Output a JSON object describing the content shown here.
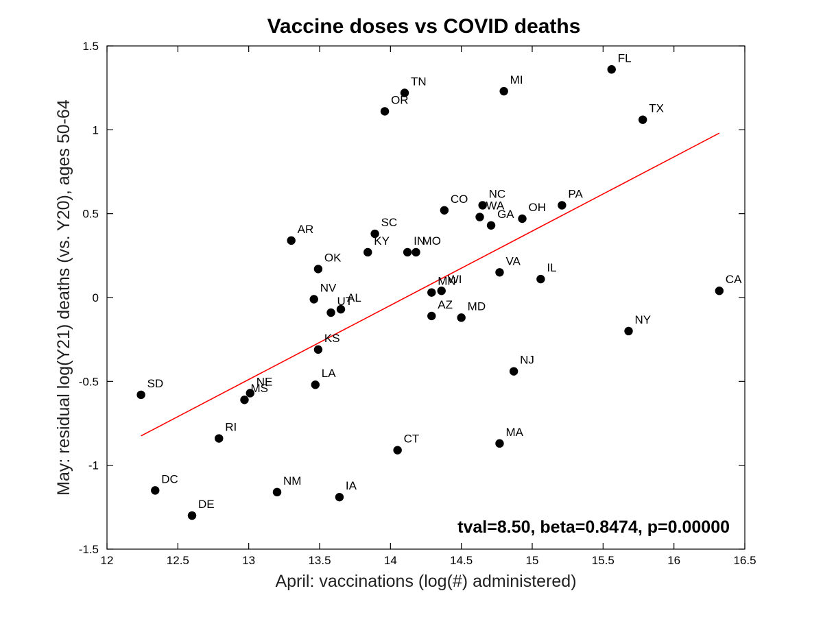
{
  "chart_data": {
    "type": "scatter",
    "title": "Vaccine doses vs COVID deaths",
    "xlabel": "April: vaccinations (log(#) administered)",
    "ylabel": "May: residual log(Y21) deaths (vs. Y20), ages 50-64",
    "xlim": [
      12,
      16.5
    ],
    "ylim": [
      -1.5,
      1.5
    ],
    "xticks": [
      12,
      12.5,
      13,
      13.5,
      14,
      14.5,
      15,
      15.5,
      16,
      16.5
    ],
    "yticks": [
      -1.5,
      -1,
      -0.5,
      0,
      0.5,
      1,
      1.5
    ],
    "xtick_labels": [
      "12",
      "12.5",
      "13",
      "13.5",
      "14",
      "14.5",
      "15",
      "15.5",
      "16",
      "16.5"
    ],
    "ytick_labels": [
      "-1.5",
      "-1",
      "-0.5",
      "0",
      "0.5",
      "1",
      "1.5"
    ],
    "annotation": "tval=8.50, beta=0.8474, p=0.00000",
    "fit_line": {
      "x": [
        12.24,
        16.32
      ],
      "y": [
        -0.825,
        0.98
      ],
      "color": "#ff0000"
    },
    "point_color": "#000000",
    "points": [
      {
        "label": "FL",
        "x": 15.56,
        "y": 1.36
      },
      {
        "label": "MI",
        "x": 14.8,
        "y": 1.23
      },
      {
        "label": "TN",
        "x": 14.1,
        "y": 1.22
      },
      {
        "label": "OR",
        "x": 13.96,
        "y": 1.11
      },
      {
        "label": "TX",
        "x": 15.78,
        "y": 1.06
      },
      {
        "label": "PA",
        "x": 15.21,
        "y": 0.55
      },
      {
        "label": "NC",
        "x": 14.65,
        "y": 0.55
      },
      {
        "label": "CO",
        "x": 14.38,
        "y": 0.52
      },
      {
        "label": "WA",
        "x": 14.63,
        "y": 0.48
      },
      {
        "label": "OH",
        "x": 14.93,
        "y": 0.47
      },
      {
        "label": "GA",
        "x": 14.71,
        "y": 0.43
      },
      {
        "label": "SC",
        "x": 13.89,
        "y": 0.38
      },
      {
        "label": "AR",
        "x": 13.3,
        "y": 0.34
      },
      {
        "label": "MO",
        "x": 14.18,
        "y": 0.27
      },
      {
        "label": "IN",
        "x": 14.12,
        "y": 0.27
      },
      {
        "label": "KY",
        "x": 13.84,
        "y": 0.27
      },
      {
        "label": "OK",
        "x": 13.49,
        "y": 0.17
      },
      {
        "label": "VA",
        "x": 14.77,
        "y": 0.15
      },
      {
        "label": "IL",
        "x": 15.06,
        "y": 0.11
      },
      {
        "label": "CA",
        "x": 16.32,
        "y": 0.04
      },
      {
        "label": "WI",
        "x": 14.36,
        "y": 0.04
      },
      {
        "label": "MN",
        "x": 14.29,
        "y": 0.03
      },
      {
        "label": "NV",
        "x": 13.46,
        "y": -0.01
      },
      {
        "label": "AL",
        "x": 13.65,
        "y": -0.07
      },
      {
        "label": "UT",
        "x": 13.58,
        "y": -0.09
      },
      {
        "label": "AZ",
        "x": 14.29,
        "y": -0.11
      },
      {
        "label": "MD",
        "x": 14.5,
        "y": -0.12
      },
      {
        "label": "NY",
        "x": 15.68,
        "y": -0.2
      },
      {
        "label": "KS",
        "x": 13.49,
        "y": -0.31
      },
      {
        "label": "NJ",
        "x": 14.87,
        "y": -0.44
      },
      {
        "label": "LA",
        "x": 13.47,
        "y": -0.52
      },
      {
        "label": "SD",
        "x": 12.24,
        "y": -0.58
      },
      {
        "label": "NE",
        "x": 13.01,
        "y": -0.57
      },
      {
        "label": "MS",
        "x": 12.97,
        "y": -0.61
      },
      {
        "label": "RI",
        "x": 12.79,
        "y": -0.84
      },
      {
        "label": "MA",
        "x": 14.77,
        "y": -0.87
      },
      {
        "label": "CT",
        "x": 14.05,
        "y": -0.91
      },
      {
        "label": "DC",
        "x": 12.34,
        "y": -1.15
      },
      {
        "label": "NM",
        "x": 13.2,
        "y": -1.16
      },
      {
        "label": "IA",
        "x": 13.64,
        "y": -1.19
      },
      {
        "label": "DE",
        "x": 12.6,
        "y": -1.3
      }
    ]
  }
}
